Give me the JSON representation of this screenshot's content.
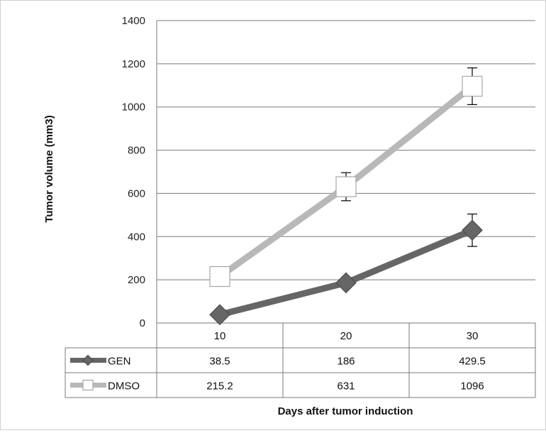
{
  "chart_data": {
    "type": "line",
    "title": "",
    "xlabel": "Days after tumor induction",
    "ylabel": "Tumor volume (mm3)",
    "categories": [
      "10",
      "20",
      "30"
    ],
    "ylim": [
      0,
      1400
    ],
    "yticks": [
      0,
      200,
      400,
      600,
      800,
      1000,
      1200,
      1400
    ],
    "grid": true,
    "legend": "data-table",
    "series": [
      {
        "name": "GEN",
        "values": [
          38.5,
          186,
          429.5
        ],
        "value_labels": [
          "38.5",
          "186",
          "429.5"
        ],
        "error": [
          null,
          null,
          75
        ],
        "color": "#666666",
        "marker": "diamond"
      },
      {
        "name": "DMSO",
        "values": [
          215.2,
          631,
          1096
        ],
        "value_labels": [
          "215.2",
          "631",
          "1096"
        ],
        "error": [
          40,
          65,
          85
        ],
        "color": "#b8b8b8",
        "marker": "square"
      }
    ]
  }
}
